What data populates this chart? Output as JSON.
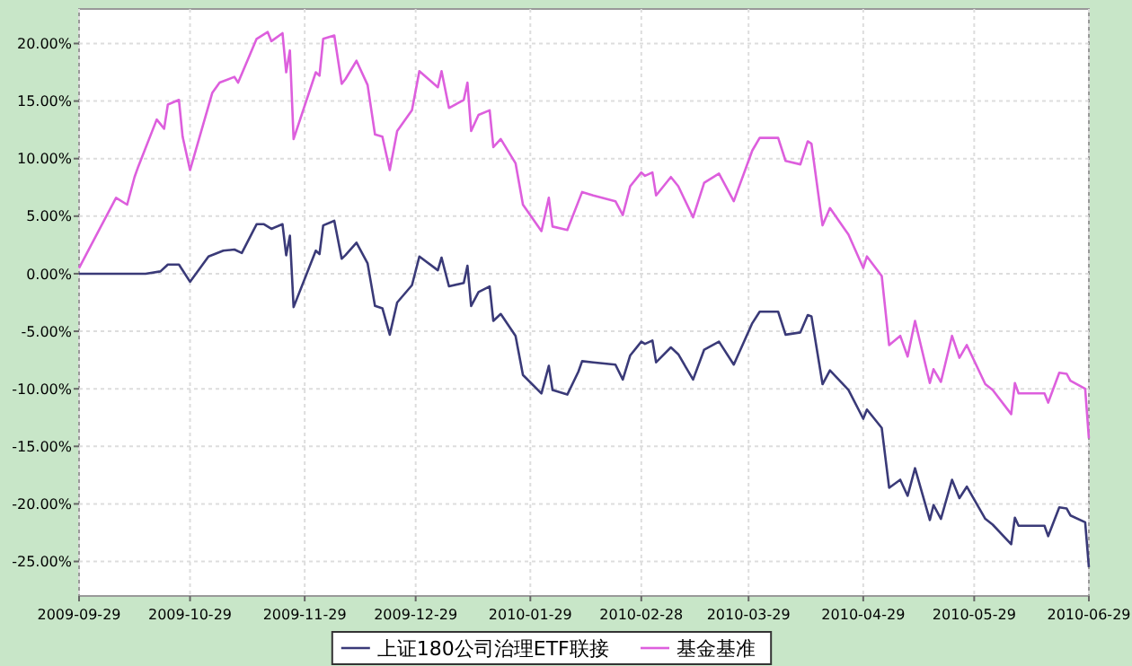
{
  "chart_data": {
    "type": "line",
    "xlim": [
      "2009-09-29",
      "2010-06-29"
    ],
    "xticks": [
      "2009-09-29",
      "2009-10-29",
      "2009-11-29",
      "2009-12-29",
      "2010-01-29",
      "2010-02-28",
      "2010-03-29",
      "2010-04-29",
      "2010-05-29",
      "2010-06-29"
    ],
    "ylim": [
      -28,
      23
    ],
    "yticks": [
      {
        "value": 20,
        "label": "20.00%"
      },
      {
        "value": 15,
        "label": "15.00%"
      },
      {
        "value": 10,
        "label": "10.00%"
      },
      {
        "value": 5,
        "label": "5.00%"
      },
      {
        "value": 0,
        "label": "0.00%"
      },
      {
        "value": -5,
        "label": "-5.00%"
      },
      {
        "value": -10,
        "label": "-10.00%"
      },
      {
        "value": -15,
        "label": "-15.00%"
      },
      {
        "value": -20,
        "label": "-20.00%"
      },
      {
        "value": -25,
        "label": "-25.00%"
      }
    ],
    "grid": true,
    "legend": "bottom",
    "line_style": "solid",
    "marker": "none",
    "series": [
      {
        "name": "上证180公司治理ETF联接",
        "color": "#3a3a78",
        "x": [
          "2009-09-29",
          "2009-10-17",
          "2009-10-21",
          "2009-10-23",
          "2009-10-26",
          "2009-10-29",
          "2009-11-03",
          "2009-11-07",
          "2009-11-10",
          "2009-11-12",
          "2009-11-16",
          "2009-11-18",
          "2009-11-20",
          "2009-11-23",
          "2009-11-24",
          "2009-11-25",
          "2009-11-26",
          "2009-12-02",
          "2009-12-03",
          "2009-12-04",
          "2009-12-07",
          "2009-12-09",
          "2009-12-10",
          "2009-12-13",
          "2009-12-16",
          "2009-12-18",
          "2009-12-20",
          "2009-12-22",
          "2009-12-24",
          "2009-12-28",
          "2009-12-30",
          "2010-01-04",
          "2010-01-05",
          "2010-01-07",
          "2010-01-11",
          "2010-01-12",
          "2010-01-13",
          "2010-01-15",
          "2010-01-18",
          "2010-01-19",
          "2010-01-21",
          "2010-01-25",
          "2010-01-27",
          "2010-02-01",
          "2010-02-03",
          "2010-02-04",
          "2010-02-08",
          "2010-02-11",
          "2010-02-12",
          "2010-02-15",
          "2010-02-21",
          "2010-02-23",
          "2010-02-25",
          "2010-02-28",
          "2010-03-01",
          "2010-03-03",
          "2010-03-04",
          "2010-03-08",
          "2010-03-10",
          "2010-03-14",
          "2010-03-17",
          "2010-03-21",
          "2010-03-25",
          "2010-03-30",
          "2010-04-01",
          "2010-04-06",
          "2010-04-08",
          "2010-04-12",
          "2010-04-14",
          "2010-04-15",
          "2010-04-18",
          "2010-04-20",
          "2010-04-25",
          "2010-04-29",
          "2010-04-30",
          "2010-05-04",
          "2010-05-06",
          "2010-05-09",
          "2010-05-11",
          "2010-05-13",
          "2010-05-17",
          "2010-05-18",
          "2010-05-20",
          "2010-05-23",
          "2010-05-25",
          "2010-05-27",
          "2010-06-01",
          "2010-06-03",
          "2010-06-08",
          "2010-06-09",
          "2010-06-10",
          "2010-06-17",
          "2010-06-18",
          "2010-06-21",
          "2010-06-23",
          "2010-06-24",
          "2010-06-28",
          "2010-06-29"
        ],
        "values": [
          0,
          0,
          0.2,
          0.8,
          0.8,
          -0.7,
          1.5,
          2.0,
          2.1,
          1.8,
          4.3,
          4.3,
          3.9,
          4.3,
          1.6,
          3.3,
          -2.9,
          2.0,
          1.7,
          4.2,
          4.6,
          1.3,
          1.6,
          2.7,
          0.9,
          -2.8,
          -3.0,
          -5.3,
          -2.5,
          -1.0,
          1.5,
          0.3,
          1.4,
          -1.1,
          -0.8,
          0.7,
          -2.8,
          -1.6,
          -1.1,
          -4.1,
          -3.5,
          -5.4,
          -8.8,
          -10.4,
          -8.0,
          -10.1,
          -10.5,
          -8.5,
          -7.6,
          -7.7,
          -7.9,
          -9.2,
          -7.1,
          -5.9,
          -6.1,
          -5.8,
          -7.7,
          -6.4,
          -7.0,
          -9.2,
          -6.6,
          -5.9,
          -7.9,
          -4.3,
          -3.3,
          -3.3,
          -5.3,
          -5.1,
          -3.6,
          -3.7,
          -9.6,
          -8.4,
          -10.1,
          -12.6,
          -11.8,
          -13.4,
          -18.6,
          -17.9,
          -19.3,
          -16.9,
          -21.4,
          -20.1,
          -21.3,
          -17.9,
          -19.5,
          -18.5,
          -21.3,
          -21.8,
          -23.5,
          -21.2,
          -21.9,
          -21.9,
          -22.8,
          -20.3,
          -20.4,
          -21.0,
          -21.6,
          -25.5
        ]
      },
      {
        "name": "基金基准",
        "color": "#dd5fdd",
        "x": [
          "2009-09-29",
          "2009-10-09",
          "2009-10-12",
          "2009-10-14",
          "2009-10-15",
          "2009-10-20",
          "2009-10-22",
          "2009-10-23",
          "2009-10-26",
          "2009-10-27",
          "2009-10-29",
          "2009-11-04",
          "2009-11-06",
          "2009-11-10",
          "2009-11-11",
          "2009-11-16",
          "2009-11-19",
          "2009-11-20",
          "2009-11-23",
          "2009-11-24",
          "2009-11-25",
          "2009-11-26",
          "2009-12-02",
          "2009-12-03",
          "2009-12-04",
          "2009-12-07",
          "2009-12-09",
          "2009-12-10",
          "2009-12-13",
          "2009-12-16",
          "2009-12-18",
          "2009-12-20",
          "2009-12-22",
          "2009-12-24",
          "2009-12-28",
          "2009-12-30",
          "2010-01-04",
          "2010-01-05",
          "2010-01-07",
          "2010-01-11",
          "2010-01-12",
          "2010-01-13",
          "2010-01-15",
          "2010-01-18",
          "2010-01-19",
          "2010-01-21",
          "2010-01-25",
          "2010-01-27",
          "2010-02-01",
          "2010-02-03",
          "2010-02-04",
          "2010-02-08",
          "2010-02-12",
          "2010-02-15",
          "2010-02-21",
          "2010-02-23",
          "2010-02-25",
          "2010-02-28",
          "2010-03-01",
          "2010-03-03",
          "2010-03-04",
          "2010-03-08",
          "2010-03-10",
          "2010-03-14",
          "2010-03-17",
          "2010-03-21",
          "2010-03-25",
          "2010-03-30",
          "2010-04-01",
          "2010-04-06",
          "2010-04-08",
          "2010-04-12",
          "2010-04-14",
          "2010-04-15",
          "2010-04-18",
          "2010-04-20",
          "2010-04-25",
          "2010-04-29",
          "2010-04-30",
          "2010-05-04",
          "2010-05-06",
          "2010-05-09",
          "2010-05-11",
          "2010-05-13",
          "2010-05-17",
          "2010-05-18",
          "2010-05-20",
          "2010-05-23",
          "2010-05-25",
          "2010-05-27",
          "2010-06-01",
          "2010-06-03",
          "2010-06-08",
          "2010-06-09",
          "2010-06-10",
          "2010-06-17",
          "2010-06-18",
          "2010-06-21",
          "2010-06-23",
          "2010-06-24",
          "2010-06-28",
          "2010-06-29"
        ],
        "values": [
          0.5,
          6.6,
          6.0,
          8.4,
          9.3,
          13.4,
          12.6,
          14.7,
          15.1,
          11.9,
          9.0,
          15.7,
          16.6,
          17.1,
          16.6,
          20.4,
          21.0,
          20.2,
          20.9,
          17.5,
          19.4,
          11.7,
          17.5,
          17.2,
          20.4,
          20.7,
          16.5,
          16.9,
          18.5,
          16.4,
          12.1,
          11.9,
          9.0,
          12.4,
          14.2,
          17.6,
          16.2,
          17.6,
          14.4,
          15.1,
          16.6,
          12.4,
          13.8,
          14.2,
          11.0,
          11.7,
          9.6,
          6.0,
          3.7,
          6.6,
          4.1,
          3.8,
          7.1,
          6.8,
          6.3,
          5.1,
          7.6,
          8.8,
          8.5,
          8.8,
          6.8,
          8.4,
          7.6,
          4.9,
          7.9,
          8.7,
          6.3,
          10.7,
          11.8,
          11.8,
          9.8,
          9.5,
          11.5,
          11.3,
          4.2,
          5.7,
          3.4,
          0.5,
          1.5,
          -0.2,
          -6.2,
          -5.4,
          -7.2,
          -4.1,
          -9.5,
          -8.3,
          -9.4,
          -5.4,
          -7.3,
          -6.2,
          -9.6,
          -10.1,
          -12.2,
          -9.5,
          -10.4,
          -10.4,
          -11.2,
          -8.6,
          -8.7,
          -9.3,
          -10.0,
          -14.3
        ]
      }
    ]
  }
}
